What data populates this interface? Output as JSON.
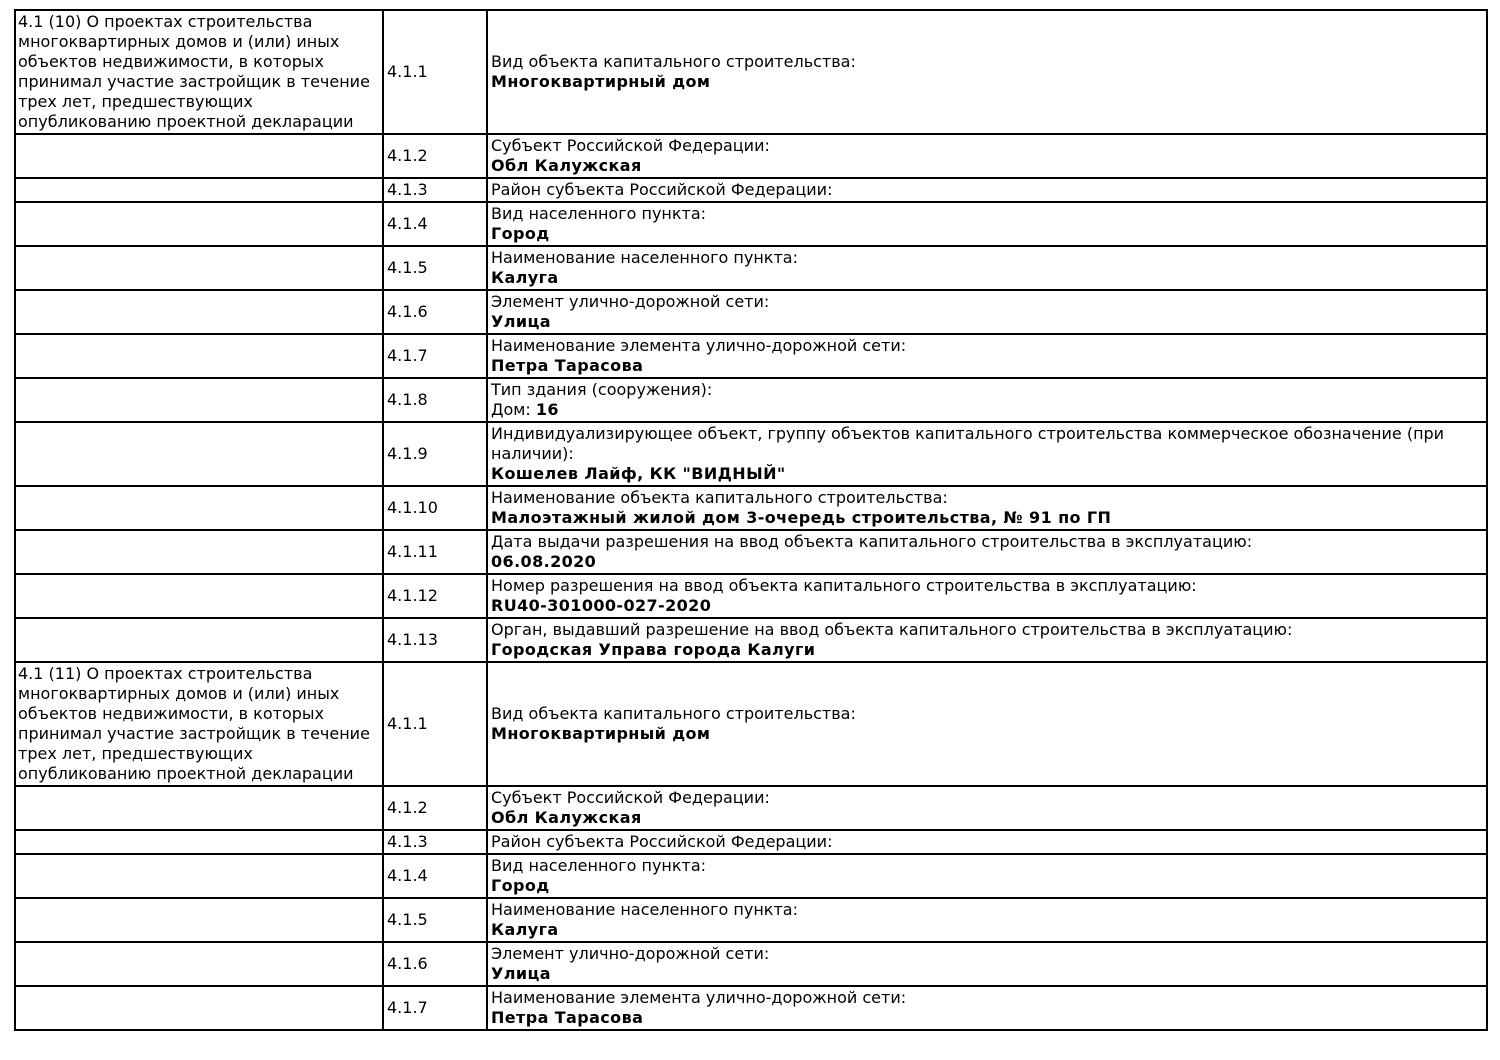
{
  "document": {
    "background_color": "#ffffff",
    "border_color": "#000000",
    "text_color": "#000000"
  },
  "table": {
    "sections": [
      {
        "title": "4.1 (10) О проектах строительства многоквартирных домов и (или) иных объектов недвижимости, в которых принимал участие застройщик в течение трех лет, предшествующих опубликованию проектной декларации",
        "rows": [
          {
            "code": "4.1.1",
            "label": "Вид объекта капитального строительства:",
            "value": "Многоквартирный дом"
          },
          {
            "code": "4.1.2",
            "label": "Субъект Российской Федерации:",
            "value": "Обл Калужская"
          },
          {
            "code": "4.1.3",
            "label": "Район субъекта Российской Федерации:",
            "value": ""
          },
          {
            "code": "4.1.4",
            "label": "Вид населенного пункта:",
            "value": "Город"
          },
          {
            "code": "4.1.5",
            "label": "Наименование населенного пункта:",
            "value": "Калуга"
          },
          {
            "code": "4.1.6",
            "label": "Элемент улично-дорожной сети:",
            "value": "Улица"
          },
          {
            "code": "4.1.7",
            "label": "Наименование элемента улично-дорожной сети:",
            "value": "Петра Тарасова"
          },
          {
            "code": "4.1.8",
            "label": "Тип здания (сооружения):",
            "value_prefix": "Дом: ",
            "value": "16"
          },
          {
            "code": "4.1.9",
            "label": "Индивидуализирующее объект, группу объектов капитального строительства коммерческое обозначение (при наличии):",
            "value": "Кошелев Лайф, КК \"ВИДНЫЙ\""
          },
          {
            "code": "4.1.10",
            "label": "Наименование объекта капитального строительства:",
            "value": "Малоэтажный жилой дом 3-очередь строительства, № 91 по ГП"
          },
          {
            "code": "4.1.11",
            "label": "Дата выдачи разрешения на ввод объекта капитального строительства в эксплуатацию:",
            "value": "06.08.2020"
          },
          {
            "code": "4.1.12",
            "label": "Номер разрешения на ввод объекта капитального строительства в эксплуатацию:",
            "value": "RU40-301000-027-2020"
          },
          {
            "code": "4.1.13",
            "label": "Орган, выдавший разрешение на ввод объекта капитального строительства в эксплуатацию:",
            "value": "Городская Управа города Калуги"
          }
        ]
      },
      {
        "title": "4.1 (11) О проектах строительства многоквартирных домов и (или) иных объектов недвижимости, в которых принимал участие застройщик в течение трех лет, предшествующих опубликованию проектной декларации",
        "rows": [
          {
            "code": "4.1.1",
            "label": "Вид объекта капитального строительства:",
            "value": "Многоквартирный дом"
          },
          {
            "code": "4.1.2",
            "label": "Субъект Российской Федерации:",
            "value": "Обл Калужская"
          },
          {
            "code": "4.1.3",
            "label": "Район субъекта Российской Федерации:",
            "value": ""
          },
          {
            "code": "4.1.4",
            "label": "Вид населенного пункта:",
            "value": "Город"
          },
          {
            "code": "4.1.5",
            "label": "Наименование населенного пункта:",
            "value": "Калуга"
          },
          {
            "code": "4.1.6",
            "label": "Элемент улично-дорожной сети:",
            "value": "Улица"
          },
          {
            "code": "4.1.7",
            "label": "Наименование элемента улично-дорожной сети:",
            "value": "Петра Тарасова"
          }
        ]
      }
    ]
  }
}
